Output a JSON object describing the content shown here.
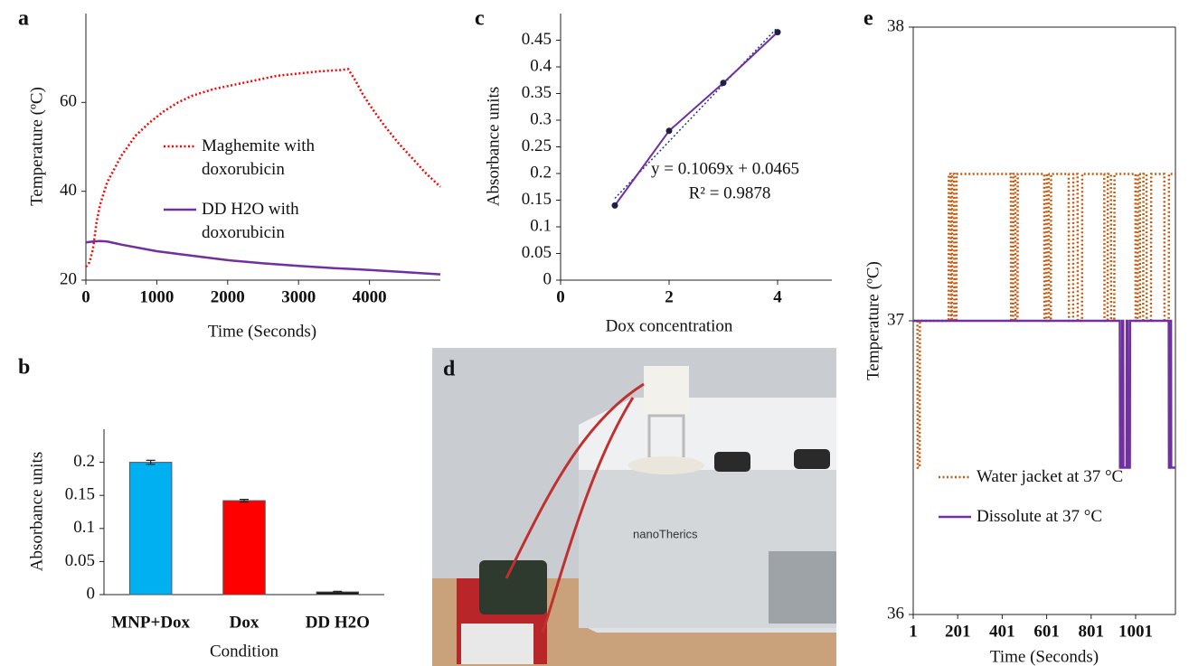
{
  "chart_data": [
    {
      "type": "line",
      "panel_label": "a",
      "xlabel": "Time (Seconds)",
      "ylabel": "Temperature (ºC)",
      "xlim": [
        0,
        5000
      ],
      "xticks": [
        0,
        1000,
        2000,
        3000,
        4000
      ],
      "ylim": [
        20,
        80
      ],
      "yticks": [
        20,
        40,
        60
      ],
      "legend": "center",
      "series": [
        {
          "name": "Maghemite with doxorubicin",
          "color": "#ff0000",
          "style": "dotted",
          "x": [
            0,
            50,
            100,
            150,
            200,
            300,
            400,
            500,
            700,
            900,
            1100,
            1300,
            1500,
            1800,
            2100,
            2400,
            2700,
            3000,
            3300,
            3600,
            3700,
            3800,
            3900,
            4000,
            4200,
            4400,
            4600,
            4800,
            5000
          ],
          "values": [
            23,
            24,
            27,
            33,
            37,
            42,
            45,
            48,
            52.5,
            55.5,
            58,
            60,
            61.5,
            63,
            64,
            65,
            66,
            66.5,
            67,
            67.3,
            67.5,
            65,
            62,
            59.5,
            55,
            51,
            47.5,
            44,
            41
          ]
        },
        {
          "name": "DD H2O with doxorubicin",
          "color": "#7030a0",
          "style": "solid",
          "x": [
            0,
            100,
            200,
            300,
            500,
            1000,
            1500,
            2000,
            2500,
            3000,
            3500,
            4000,
            4500,
            5000
          ],
          "values": [
            28.5,
            28.7,
            28.8,
            28.7,
            28,
            26.5,
            25.5,
            24.5,
            23.8,
            23.2,
            22.7,
            22.3,
            21.8,
            21.3
          ]
        }
      ]
    },
    {
      "type": "bar",
      "panel_label": "b",
      "xlabel": "Condition",
      "ylabel": "Absorbance units",
      "categories": [
        "MNP+Dox",
        "Dox",
        "DD H2O"
      ],
      "values": [
        0.2,
        0.142,
        0.004
      ],
      "errors": [
        0.003,
        0.002,
        0.001
      ],
      "colors": [
        "#00b0f0",
        "#ff0000",
        "#111111"
      ],
      "ylim": [
        0,
        0.25
      ],
      "yticks": [
        0,
        0.05,
        0.1,
        0.15,
        0.2
      ]
    },
    {
      "type": "scatter",
      "panel_label": "c",
      "xlabel": "Dox concentration",
      "ylabel": "Absorbance units",
      "xlim": [
        0,
        5
      ],
      "xticks": [
        0,
        2,
        4
      ],
      "ylim": [
        0,
        0.5
      ],
      "yticks": [
        0,
        0.05,
        0.1,
        0.15,
        0.2,
        0.25,
        0.3,
        0.35,
        0.4,
        0.45
      ],
      "series": [
        {
          "color": "#7030a0",
          "marker_color": "#1f1f3f",
          "x": [
            1,
            2,
            3,
            4
          ],
          "values": [
            0.14,
            0.28,
            0.37,
            0.465
          ]
        }
      ],
      "trendline": {
        "slope": 0.1069,
        "intercept": 0.0465,
        "color": "#1f3a93"
      },
      "annotations": [
        "y = 0.1069x + 0.0465",
        "R² = 0.9878"
      ]
    },
    {
      "type": "line",
      "panel_label": "e",
      "xlabel": "Time (Seconds)",
      "ylabel": "Temperature (ºC)",
      "xlim": [
        1,
        1180
      ],
      "xticks": [
        1,
        201,
        401,
        601,
        801,
        1001
      ],
      "ylim": [
        36,
        38
      ],
      "yticks": [
        36,
        37,
        38
      ],
      "legend": "lower-left",
      "frame": true,
      "series": [
        {
          "name": "Water jacket at 37 °C",
          "color": "#c55a11",
          "style": "dotted",
          "x": [
            1,
            20,
            21,
            30,
            31,
            160,
            161,
            170,
            171,
            175,
            176,
            185,
            186,
            195,
            196,
            440,
            441,
            450,
            451,
            460,
            461,
            470,
            471,
            590,
            591,
            600,
            601,
            610,
            611,
            620,
            621,
            700,
            701,
            720,
            721,
            740,
            741,
            760,
            761,
            860,
            861,
            875,
            876,
            890,
            891,
            905,
            906,
            1000,
            1001,
            1010,
            1011,
            1020,
            1021,
            1035,
            1036,
            1050,
            1051,
            1070,
            1071,
            1130,
            1131,
            1150,
            1151,
            1180
          ],
          "values": [
            37,
            37,
            36.5,
            36.5,
            37,
            37,
            37.5,
            37.5,
            37,
            37,
            37.5,
            37.5,
            37,
            37,
            37.5,
            37.5,
            37,
            37,
            37.5,
            37.5,
            37,
            37,
            37.5,
            37.5,
            37,
            37,
            37.5,
            37.5,
            37,
            37,
            37.5,
            37.5,
            37,
            37,
            37.5,
            37.5,
            37,
            37,
            37.5,
            37.5,
            37,
            37,
            37.5,
            37.5,
            37,
            37,
            37.5,
            37.5,
            37,
            37,
            37.5,
            37.5,
            37,
            37,
            37.5,
            37.5,
            37,
            37,
            37.5,
            37.5,
            37,
            37,
            37.5,
            37.5
          ]
        },
        {
          "name": "Dissolute at 37 °C",
          "color": "#7030a0",
          "style": "solid",
          "x": [
            1,
            930,
            931,
            940,
            941,
            945,
            946,
            960,
            961,
            965,
            966,
            975,
            976,
            1150,
            1151,
            1155,
            1156,
            1160,
            1161,
            1180
          ],
          "values": [
            37,
            37,
            36.5,
            36.5,
            37,
            37,
            36.5,
            36.5,
            37,
            37,
            36.5,
            36.5,
            37,
            37,
            36.5,
            36.5,
            37,
            37,
            36.5,
            36.5
          ]
        }
      ]
    }
  ],
  "photo": {
    "label": "d",
    "brand_text": "nanoTherics"
  }
}
